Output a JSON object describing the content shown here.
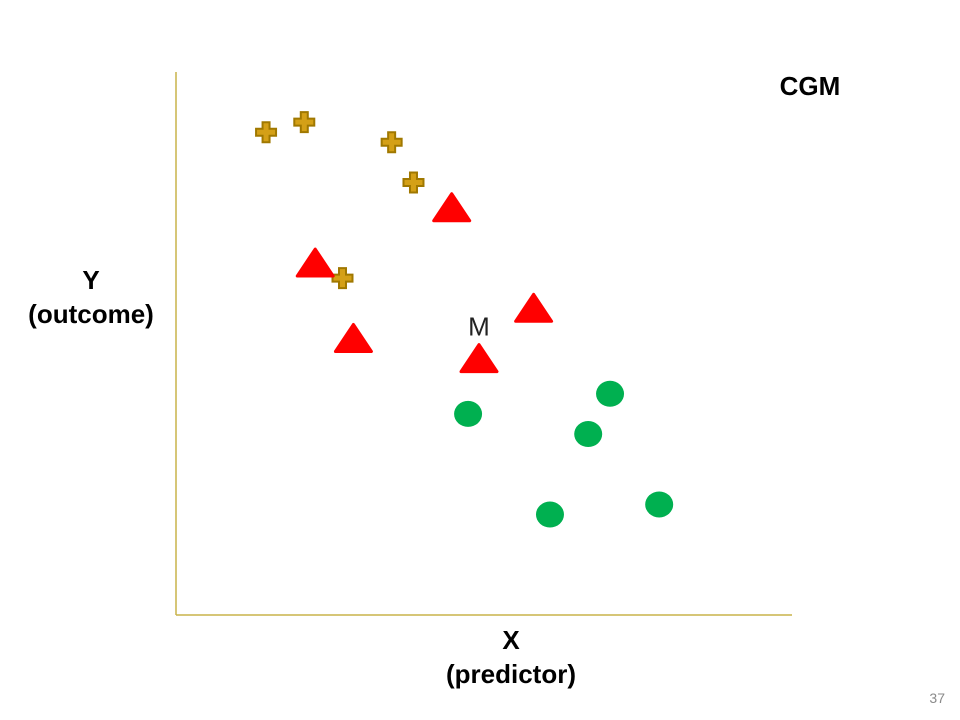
{
  "slide": {
    "number": "37"
  },
  "chart_data": {
    "type": "scatter",
    "title": "CGM",
    "xlabel": {
      "line1": "X",
      "line2": "(predictor)"
    },
    "ylabel": {
      "line1": "Y",
      "line2": "(outcome)"
    },
    "xlim": [
      0,
      100
    ],
    "ylim": [
      0,
      100
    ],
    "grid": false,
    "axis_color": "#c8b44a",
    "series": [
      {
        "marker": "cross",
        "color": "#d4a017",
        "edge_color": "#a07800",
        "points": [
          {
            "x": 11,
            "y": 92
          },
          {
            "x": 18,
            "y": 94
          },
          {
            "x": 34,
            "y": 90
          },
          {
            "x": 38,
            "y": 82
          },
          {
            "x": 25,
            "y": 63
          }
        ]
      },
      {
        "marker": "triangle",
        "color": "#ff0000",
        "points": [
          {
            "x": 45,
            "y": 77
          },
          {
            "x": 20,
            "y": 66
          },
          {
            "x": 60,
            "y": 57
          },
          {
            "x": 27,
            "y": 51
          },
          {
            "x": 50,
            "y": 47
          }
        ]
      },
      {
        "marker": "circle",
        "color": "#00b050",
        "points": [
          {
            "x": 74,
            "y": 40
          },
          {
            "x": 48,
            "y": 36
          },
          {
            "x": 70,
            "y": 32
          },
          {
            "x": 83,
            "y": 18
          },
          {
            "x": 63,
            "y": 16
          }
        ]
      }
    ],
    "annotations": [
      {
        "text": "M",
        "x": 50,
        "y": 53,
        "color": "#222222"
      }
    ]
  }
}
